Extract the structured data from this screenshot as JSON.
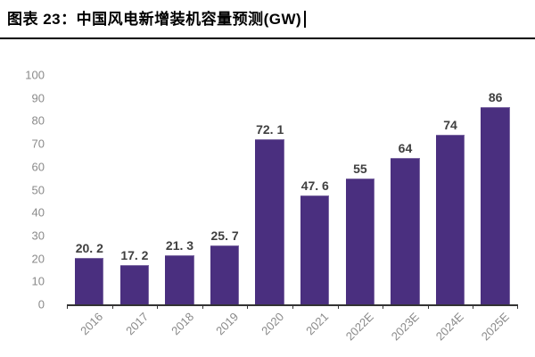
{
  "header": {
    "title": "图表 23：中国风电新增装机容量预测(GW)"
  },
  "chart_data": {
    "type": "bar",
    "title": "图表 23：中国风电新增装机容量预测(GW)",
    "categories": [
      "2016",
      "2017",
      "2018",
      "2019",
      "2020",
      "2021",
      "2022E",
      "2023E",
      "2024E",
      "2025E"
    ],
    "values": [
      20.2,
      17.2,
      21.3,
      25.7,
      72.1,
      47.6,
      55,
      64,
      74,
      86
    ],
    "value_labels": [
      "20. 2",
      "17. 2",
      "21. 3",
      "25. 7",
      "72. 1",
      "47. 6",
      "55",
      "64",
      "74",
      "86"
    ],
    "xlabel": "",
    "ylabel": "",
    "ylim": [
      0,
      100
    ],
    "yticks": [
      0,
      10,
      20,
      30,
      40,
      50,
      60,
      70,
      80,
      90,
      100
    ],
    "grid": false,
    "legend_position": "none",
    "bar_color": "#4A2F7F",
    "value_label_color": "#3f3f3f",
    "axis_label_color": "#8a8a8a",
    "x_label_rotation_deg": -45
  }
}
